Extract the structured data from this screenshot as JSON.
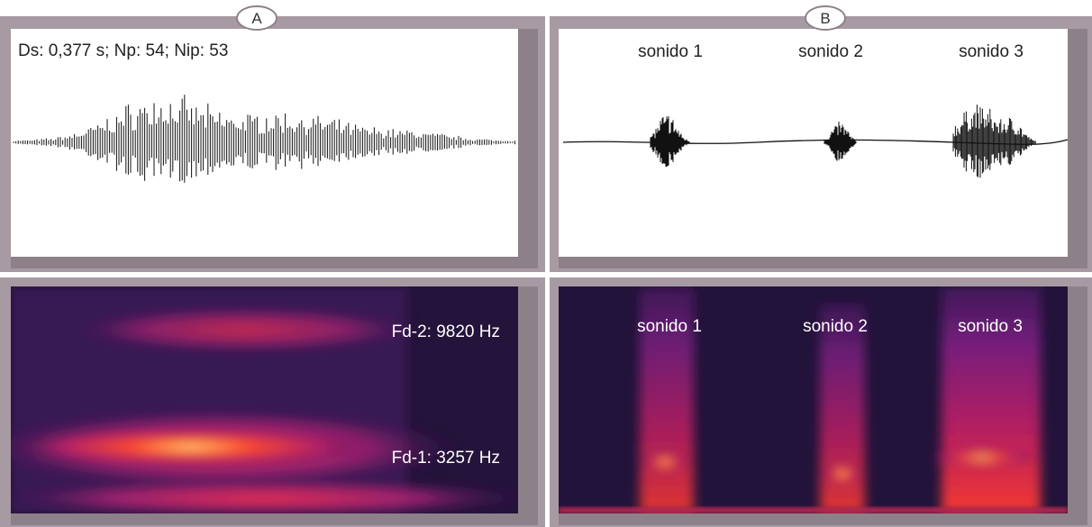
{
  "panel_a": {
    "label": "A",
    "waveform_caption": "Ds: 0,377 s; Np: 54; Nip: 53",
    "spectrogram_labels": [
      "Fd-2: 9820 Hz",
      "Fd-1: 3257 Hz"
    ]
  },
  "panel_b": {
    "label": "B",
    "waveform_labels": [
      "sonido 1",
      "sonido 2",
      "sonido 3"
    ],
    "spectrogram_labels": [
      "sonido 1",
      "sonido 2",
      "sonido 3"
    ]
  }
}
